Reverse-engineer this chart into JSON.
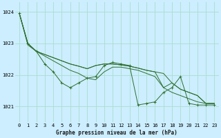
{
  "title": "Graphe pression niveau de la mer (hPa)",
  "bg_color": "#cceeff",
  "grid_color": "#aaddcc",
  "line_color": "#2d6e2d",
  "ylim": [
    1020.5,
    1024.3
  ],
  "xlim": [
    -0.5,
    23.5
  ],
  "yticks": [
    1021,
    1022,
    1023,
    1024
  ],
  "xticks": [
    0,
    1,
    2,
    3,
    4,
    5,
    6,
    7,
    8,
    9,
    10,
    11,
    12,
    13,
    14,
    15,
    16,
    17,
    18,
    19,
    20,
    21,
    22,
    23
  ],
  "series_with_markers": [
    [
      1023.95,
      1023.0,
      1022.75,
      1022.35,
      1022.1,
      1021.75,
      1021.6,
      1021.75,
      1021.9,
      1021.95,
      1022.3,
      1022.4,
      1022.35,
      1022.3,
      1021.05,
      1021.1,
      1021.15,
      1021.45,
      1021.6,
      1021.95,
      1021.1,
      1021.05,
      1021.05,
      1021.05
    ]
  ],
  "series_smooth": [
    [
      1023.95,
      1023.0,
      1022.75,
      1022.65,
      1022.55,
      1022.45,
      1022.35,
      1022.28,
      1022.2,
      1022.3,
      1022.35,
      1022.35,
      1022.32,
      1022.28,
      1022.22,
      1022.15,
      1022.1,
      1022.05,
      1021.75,
      1021.55,
      1021.45,
      1021.35,
      1021.1,
      1021.1
    ],
    [
      1023.95,
      1023.0,
      1022.75,
      1022.65,
      1022.55,
      1022.45,
      1022.35,
      1022.28,
      1022.2,
      1022.3,
      1022.35,
      1022.35,
      1022.32,
      1022.28,
      1022.22,
      1022.15,
      1022.1,
      1021.6,
      1021.75,
      1021.55,
      1021.45,
      1021.35,
      1021.1,
      1021.1
    ],
    [
      1023.95,
      1022.95,
      1022.75,
      1022.6,
      1022.45,
      1022.3,
      1022.15,
      1022.05,
      1021.9,
      1021.85,
      1022.1,
      1022.25,
      1022.25,
      1022.2,
      1022.15,
      1022.05,
      1021.95,
      1021.6,
      1021.45,
      1021.35,
      1021.25,
      1021.15,
      1021.1,
      1021.1
    ]
  ]
}
